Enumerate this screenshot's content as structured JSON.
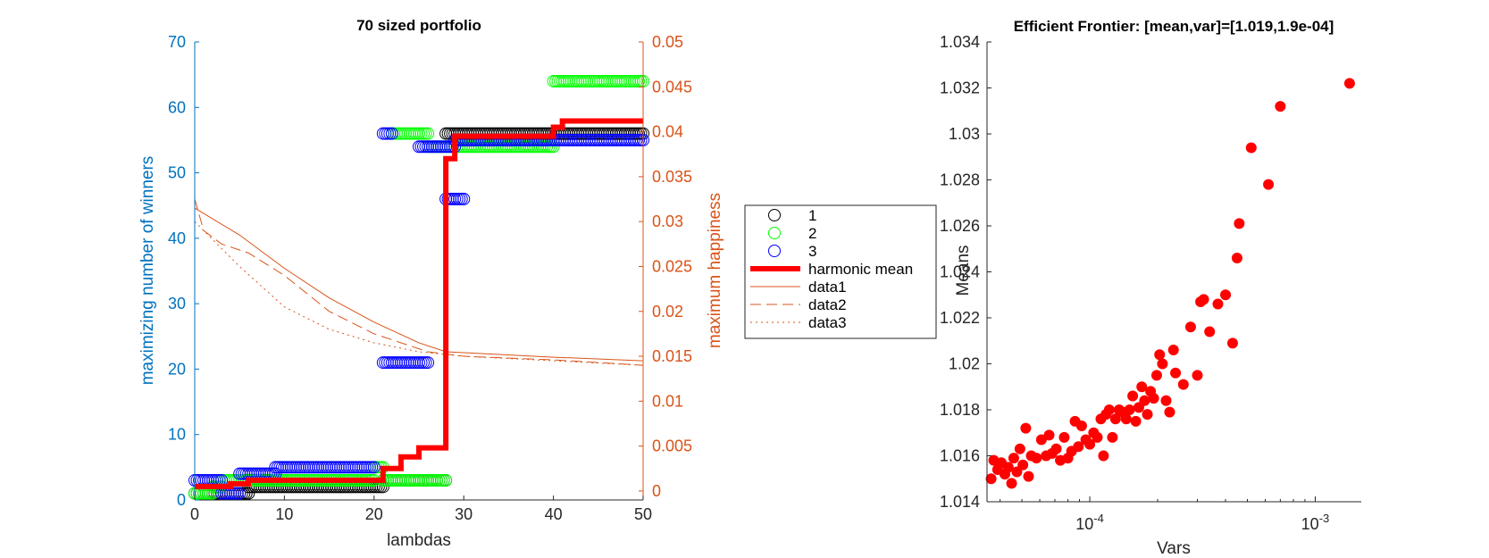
{
  "colors": {
    "left_axis": "#0072bd",
    "right_axis": "#d95319",
    "harmonic": "#ff0000",
    "s1": "#000000",
    "s2": "#00ff00",
    "s3": "#0000ff",
    "scatter": "#ff0000",
    "axis": "#262626"
  },
  "chart_data": [
    {
      "type": "line",
      "title": "70 sized portfolio",
      "xlabel": "lambdas",
      "ylabel_left": "maximizing number of winners",
      "ylabel_right": "maximum happiness",
      "xlim": [
        0,
        50
      ],
      "ylim_left": [
        0,
        70
      ],
      "ylim_right": [
        -0.001,
        0.05
      ],
      "x_ticks": [
        0,
        10,
        20,
        30,
        40,
        50
      ],
      "y_ticks_left": [
        0,
        10,
        20,
        30,
        40,
        50,
        60,
        70
      ],
      "y_ticks_right": [
        0,
        0.005,
        0.01,
        0.015,
        0.02,
        0.025,
        0.03,
        0.035,
        0.04,
        0.045,
        0.05
      ],
      "y_tick_labels_right": [
        "0",
        "0.005",
        "0.01",
        "0.015",
        "0.02",
        "0.025",
        "0.03",
        "0.035",
        "0.04",
        "0.045",
        "0.05"
      ],
      "legend_position": "outside-right",
      "legend": [
        {
          "label": "1",
          "kind": "circle",
          "color_key": "s1"
        },
        {
          "label": "2",
          "kind": "circle",
          "color_key": "s2"
        },
        {
          "label": "3",
          "kind": "circle",
          "color_key": "s3"
        },
        {
          "label": "harmonic mean",
          "kind": "thick",
          "color_key": "harmonic"
        },
        {
          "label": "data1",
          "kind": "solid",
          "color_key": "right_axis"
        },
        {
          "label": "data2",
          "kind": "dash",
          "color_key": "right_axis"
        },
        {
          "label": "data3",
          "kind": "dot",
          "color_key": "right_axis"
        }
      ],
      "series_markers": [
        {
          "name": "1",
          "axis": "left",
          "segments": [
            {
              "x0": 0,
              "x1": 6,
              "y": 1
            },
            {
              "x0": 6,
              "x1": 21,
              "y": 2
            },
            {
              "x0": 21,
              "x1": 28,
              "y": 3
            },
            {
              "x0": 28,
              "x1": 50,
              "y": 56
            }
          ]
        },
        {
          "name": "2",
          "axis": "left",
          "segments": [
            {
              "x0": 0,
              "x1": 2,
              "y": 1
            },
            {
              "x0": 2,
              "x1": 3,
              "y": 2
            },
            {
              "x0": 3,
              "x1": 20,
              "y": 3
            },
            {
              "x0": 20,
              "x1": 21,
              "y": 5
            },
            {
              "x0": 21,
              "x1": 28,
              "y": 3
            },
            {
              "x0": 22,
              "x1": 26,
              "y": 56
            },
            {
              "x0": 26,
              "x1": 40,
              "y": 54
            },
            {
              "x0": 40,
              "x1": 50,
              "y": 64
            }
          ]
        },
        {
          "name": "3",
          "axis": "left",
          "segments": [
            {
              "x0": 0,
              "x1": 3,
              "y": 3
            },
            {
              "x0": 3,
              "x1": 5,
              "y": 1
            },
            {
              "x0": 5,
              "x1": 9,
              "y": 4
            },
            {
              "x0": 9,
              "x1": 20,
              "y": 5
            },
            {
              "x0": 21,
              "x1": 22,
              "y": 56
            },
            {
              "x0": 21,
              "x1": 26,
              "y": 21
            },
            {
              "x0": 25,
              "x1": 29,
              "y": 54
            },
            {
              "x0": 28,
              "x1": 30,
              "y": 46
            },
            {
              "x0": 29,
              "x1": 40,
              "y": 55
            },
            {
              "x0": 40,
              "x1": 50,
              "y": 55
            }
          ]
        }
      ],
      "harmonic_mean": {
        "axis": "right",
        "x": [
          0,
          4,
          6,
          21,
          23,
          25,
          28,
          29,
          40,
          41,
          50
        ],
        "y": [
          0.0005,
          0.0008,
          0.0012,
          0.0025,
          0.0038,
          0.0048,
          0.037,
          0.0395,
          0.0405,
          0.0412,
          0.0412
        ]
      },
      "series": [
        {
          "name": "data1",
          "axis": "right",
          "style": "solid",
          "x": [
            0,
            5,
            10,
            15,
            20,
            25,
            28,
            30,
            40,
            50
          ],
          "y": [
            0.0315,
            0.0285,
            0.0248,
            0.0215,
            0.0188,
            0.0165,
            0.0155,
            0.0154,
            0.0149,
            0.0145
          ]
        },
        {
          "name": "data2",
          "axis": "right",
          "style": "dash",
          "x": [
            0,
            1,
            3,
            6,
            10,
            15,
            20,
            26,
            30,
            40,
            50
          ],
          "y": [
            0.0325,
            0.029,
            0.0275,
            0.0265,
            0.024,
            0.02,
            0.0175,
            0.0155,
            0.015,
            0.0146,
            0.014
          ]
        },
        {
          "name": "data3",
          "axis": "right",
          "style": "dot",
          "x": [
            0,
            2,
            5,
            10,
            15,
            20,
            25,
            30,
            40,
            50
          ],
          "y": [
            0.03,
            0.028,
            0.025,
            0.0205,
            0.018,
            0.0165,
            0.0155,
            0.015,
            0.0145,
            0.014
          ]
        }
      ]
    },
    {
      "type": "scatter",
      "title": "Efficient Frontier: [mean,var]=[1.019,1.9e-04]",
      "xlabel": "Vars",
      "ylabel": "Means",
      "xscale": "log",
      "xlim": [
        3.5e-05,
        0.0016
      ],
      "ylim": [
        1.014,
        1.034
      ],
      "x_ticks": [
        0.0001,
        0.001
      ],
      "x_tick_base": "10",
      "x_tick_exponents": [
        "-4",
        "-3"
      ],
      "y_ticks": [
        1.014,
        1.016,
        1.018,
        1.02,
        1.022,
        1.024,
        1.026,
        1.028,
        1.03,
        1.032,
        1.034
      ],
      "y_tick_labels": [
        "1.014",
        "1.016",
        "1.018",
        "1.02",
        "1.022",
        "1.024",
        "1.026",
        "1.028",
        "1.03",
        "1.032",
        "1.034"
      ],
      "points": [
        [
          3.65e-05,
          1.015
        ],
        [
          3.75e-05,
          1.0158
        ],
        [
          3.9e-05,
          1.0154
        ],
        [
          4.05e-05,
          1.0157
        ],
        [
          4.2e-05,
          1.0152
        ],
        [
          4.35e-05,
          1.0155
        ],
        [
          4.5e-05,
          1.0148
        ],
        [
          4.6e-05,
          1.0159
        ],
        [
          4.75e-05,
          1.0153
        ],
        [
          4.9e-05,
          1.0163
        ],
        [
          5.05e-05,
          1.0156
        ],
        [
          5.2e-05,
          1.0172
        ],
        [
          5.35e-05,
          1.0151
        ],
        [
          5.5e-05,
          1.016
        ],
        [
          5.8e-05,
          1.0159
        ],
        [
          6.1e-05,
          1.0167
        ],
        [
          6.4e-05,
          1.016
        ],
        [
          6.6e-05,
          1.0169
        ],
        [
          6.8e-05,
          1.0161
        ],
        [
          7.1e-05,
          1.0163
        ],
        [
          7.4e-05,
          1.0158
        ],
        [
          7.7e-05,
          1.0168
        ],
        [
          8e-05,
          1.0159
        ],
        [
          8.3e-05,
          1.0162
        ],
        [
          8.6e-05,
          1.0175
        ],
        [
          8.9e-05,
          1.0164
        ],
        [
          9.2e-05,
          1.0173
        ],
        [
          9.6e-05,
          1.0167
        ],
        [
          0.0001,
          1.0165
        ],
        [
          0.000104,
          1.017
        ],
        [
          0.000108,
          1.0168
        ],
        [
          0.000112,
          1.0176
        ],
        [
          0.000115,
          1.016
        ],
        [
          0.000118,
          1.0178
        ],
        [
          0.000122,
          1.018
        ],
        [
          0.000126,
          1.0168
        ],
        [
          0.00013,
          1.0176
        ],
        [
          0.000135,
          1.018
        ],
        [
          0.00014,
          1.0179
        ],
        [
          0.000145,
          1.0176
        ],
        [
          0.00015,
          1.018
        ],
        [
          0.000155,
          1.0186
        ],
        [
          0.00016,
          1.0175
        ],
        [
          0.000165,
          1.0181
        ],
        [
          0.00017,
          1.019
        ],
        [
          0.000175,
          1.0184
        ],
        [
          0.00018,
          1.0178
        ],
        [
          0.000186,
          1.0188
        ],
        [
          0.000192,
          1.0185
        ],
        [
          0.000198,
          1.0195
        ],
        [
          0.000204,
          1.0204
        ],
        [
          0.00021,
          1.02
        ],
        [
          0.000218,
          1.0184
        ],
        [
          0.000226,
          1.0179
        ],
        [
          0.000235,
          1.0206
        ],
        [
          0.00024,
          1.0196
        ],
        [
          0.00026,
          1.0191
        ],
        [
          0.00028,
          1.0216
        ],
        [
          0.0003,
          1.0195
        ],
        [
          0.00031,
          1.0227
        ],
        [
          0.00032,
          1.0228
        ],
        [
          0.00034,
          1.0214
        ],
        [
          0.00037,
          1.0226
        ],
        [
          0.0004,
          1.023
        ],
        [
          0.00043,
          1.0209
        ],
        [
          0.00045,
          1.0246
        ],
        [
          0.00046,
          1.0261
        ],
        [
          0.00052,
          1.0294
        ],
        [
          0.00062,
          1.0278
        ],
        [
          0.0007,
          1.0312
        ],
        [
          0.00142,
          1.0322
        ]
      ]
    }
  ]
}
